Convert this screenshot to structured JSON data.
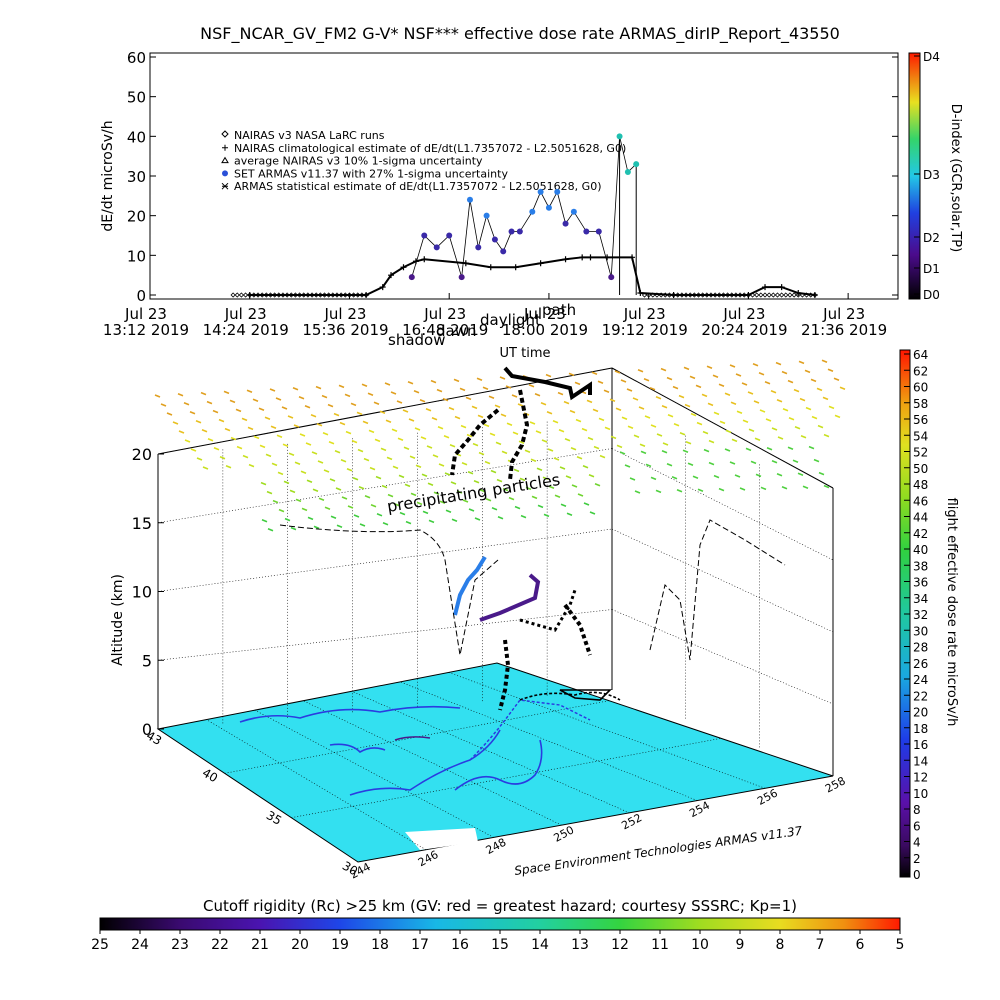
{
  "title": "NSF_NCAR_GV_FM2 G-V* NSF*** effective dose rate ARMAS_dirIP_Report_43550",
  "chart_data": [
    {
      "type": "line",
      "panel": "time-series",
      "ylabel": "dE/dt microSv/h",
      "xlabel": "UT time",
      "ylim": [
        0,
        60
      ],
      "y_ticks": [
        "0",
        "10",
        "20",
        "30",
        "40",
        "50",
        "60"
      ],
      "x_ticks": [
        {
          "line1": "Jul 23",
          "line2": "13:12 2019"
        },
        {
          "line1": "Jul 23",
          "line2": "14:24 2019"
        },
        {
          "line1": "Jul 23",
          "line2": "15:36 2019"
        },
        {
          "line1": "Jul 23",
          "line2": "16:48 2019"
        },
        {
          "line1": "Jul 23",
          "line2": "18:00 2019"
        },
        {
          "line1": "Jul 23",
          "line2": "19:12 2019"
        },
        {
          "line1": "Jul 23",
          "line2": "20:24 2019"
        },
        {
          "line1": "Jul 23",
          "line2": "21:36 2019"
        }
      ],
      "overlay_labels": [
        "shadow",
        "dawn",
        "daylight",
        "path"
      ],
      "legend": [
        {
          "symbol": "diamond",
          "label": "NAIRAS v3 NASA LaRC runs"
        },
        {
          "symbol": "plus",
          "label": "NAIRAS climatological estimate of dE/dt(L1.7357072 - L2.5051628, G0)"
        },
        {
          "symbol": "triangle",
          "label": "average NAIRAS v3 10% 1-sigma uncertainty"
        },
        {
          "symbol": "dot",
          "label": "SET ARMAS v11.37 with 27% 1-sigma uncertainty"
        },
        {
          "symbol": "asterisk",
          "label": "ARMAS statistical estimate of dE/dt(L1.7357072 - L2.5051628, G0)"
        }
      ],
      "series": [
        {
          "name": "NAIRAS climatological estimate",
          "x_hours": [
            14.4,
            15.8,
            16.0,
            16.1,
            16.25,
            16.4,
            16.5,
            17.0,
            17.3,
            17.6,
            17.9,
            18.2,
            18.4,
            18.5,
            18.7,
            19.0,
            19.1,
            19.5,
            20.4,
            20.6,
            20.8,
            21.0,
            21.2
          ],
          "values": [
            0,
            0,
            2,
            5,
            7,
            8.5,
            9,
            8,
            7,
            7,
            8,
            9,
            9.5,
            9.5,
            9.5,
            9.5,
            0.5,
            0,
            0,
            2,
            2,
            0.5,
            0
          ]
        },
        {
          "name": "SET ARMAS v11.37",
          "x_hours": [
            16.35,
            16.5,
            16.65,
            16.8,
            16.95,
            17.05,
            17.15,
            17.25,
            17.35,
            17.45,
            17.55,
            17.65,
            17.8,
            17.9,
            18.0,
            18.1,
            18.2,
            18.3,
            18.45,
            18.6,
            18.75,
            18.85,
            18.95,
            19.05
          ],
          "values": [
            4.5,
            15,
            12,
            15,
            4.5,
            24,
            12,
            20,
            14,
            11,
            16,
            16,
            21,
            26,
            22,
            26,
            18,
            21,
            16,
            16,
            4.5,
            40,
            31,
            33
          ]
        }
      ],
      "right_axis": {
        "label": "D-index (GCR,solar,TP)",
        "ticks": [
          "D0",
          "D1",
          "D2",
          "D3",
          "D4"
        ]
      }
    },
    {
      "type": "scatter",
      "panel": "3d-trajectory",
      "zlabel": "Altitude (km)",
      "z_ticks": [
        "0",
        "5",
        "10",
        "15",
        "20"
      ],
      "lat_ticks": [
        "30",
        "35",
        "40",
        "43"
      ],
      "lon_ticks": [
        "244",
        "246",
        "248",
        "250",
        "252",
        "254",
        "256",
        "258"
      ],
      "annotation": "precipitating particles",
      "credit": "Space Environment Technologies ARMAS v11.37",
      "colorbar": {
        "label": "flight effective dose rate microSv/h",
        "range": [
          0,
          64
        ],
        "ticks": [
          "0",
          "2",
          "4",
          "6",
          "8",
          "10",
          "12",
          "14",
          "16",
          "18",
          "20",
          "22",
          "24",
          "26",
          "28",
          "30",
          "32",
          "34",
          "36",
          "38",
          "40",
          "42",
          "44",
          "46",
          "48",
          "50",
          "52",
          "54",
          "56",
          "58",
          "60",
          "62",
          "64"
        ]
      }
    }
  ],
  "cutoff_bar": {
    "title": "Cutoff rigidity (Rc) >25 km (GV: red = greatest hazard; courtesy SSSRC; Kp=1)",
    "ticks": [
      "25",
      "24",
      "23",
      "22",
      "21",
      "20",
      "19",
      "18",
      "17",
      "16",
      "15",
      "14",
      "13",
      "12",
      "11",
      "10",
      "9",
      "8",
      "7",
      "6",
      "5"
    ]
  },
  "colors": {
    "ground": "#33e0f0",
    "black_segment": "#000000",
    "armas_dot": "#2a7ee8",
    "armas_edge": "#4a1a8a"
  }
}
